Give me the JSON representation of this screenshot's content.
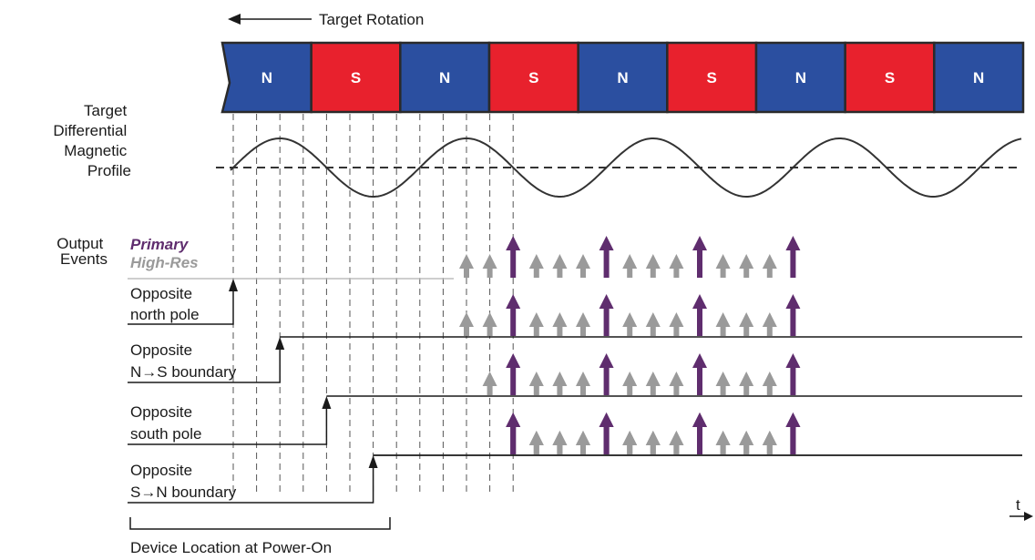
{
  "title": "Target Rotation",
  "target": {
    "poles": [
      "N",
      "S",
      "N",
      "S",
      "N",
      "S",
      "N",
      "S",
      "N"
    ],
    "colors": {
      "N": "#2b4fa0",
      "S": "#e8212d"
    }
  },
  "profile": {
    "label": [
      "Target",
      "Differential",
      "Magnetic",
      "Profile"
    ]
  },
  "output": {
    "label": [
      "Output",
      "Events"
    ],
    "legend": {
      "primary": "Primary",
      "high_res": "High-Res",
      "primary_color": "#5f2d6e",
      "high_res_color": "#9a9a9a"
    },
    "rows": [
      {
        "name": "north-pole",
        "label": [
          "Opposite",
          "north pole"
        ],
        "high_res_start": 10,
        "primary_start": 12
      },
      {
        "name": "ns-boundary",
        "label": [
          "Opposite",
          "N→S boundary"
        ],
        "high_res_start": 11,
        "primary_start": 12
      },
      {
        "name": "south-pole",
        "label": [
          "Opposite",
          "south pole"
        ],
        "high_res_start": 12,
        "primary_start": 12
      },
      {
        "name": "sn-boundary",
        "label": [
          "Opposite",
          "S→N boundary"
        ],
        "high_res_start": 12,
        "primary_start": 12
      }
    ],
    "primary_every": 4,
    "total_events": 24
  },
  "time_label": "t",
  "footer": "Device Location at Power-On"
}
